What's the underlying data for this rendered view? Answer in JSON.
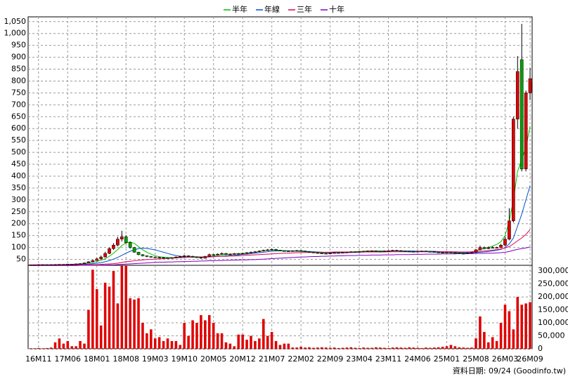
{
  "chart_data": {
    "type": "candlestick",
    "legend": "top",
    "grid": true,
    "categories": [
      null,
      null,
      "16M11",
      null,
      null,
      null,
      null,
      null,
      null,
      "17M06",
      null,
      null,
      null,
      null,
      null,
      null,
      "18M01",
      null,
      null,
      null,
      null,
      null,
      null,
      "18M08",
      null,
      null,
      null,
      null,
      null,
      null,
      "19M03",
      null,
      null,
      null,
      null,
      null,
      null,
      "19M10",
      null,
      null,
      null,
      null,
      null,
      null,
      "20M05",
      null,
      null,
      null,
      null,
      null,
      null,
      "20M12",
      null,
      null,
      null,
      null,
      null,
      null,
      "21M07",
      null,
      null,
      null,
      null,
      null,
      null,
      "22M02",
      null,
      null,
      null,
      null,
      null,
      null,
      "22M09",
      null,
      null,
      null,
      null,
      null,
      null,
      "23M04",
      null,
      null,
      null,
      null,
      null,
      null,
      "23M11",
      null,
      null,
      null,
      null,
      null,
      null,
      "24M06",
      null,
      null,
      null,
      null,
      null,
      null,
      "25M01",
      null,
      null,
      null,
      null,
      null,
      null,
      "25M08",
      null,
      null,
      null,
      null,
      null,
      null,
      "26M03",
      null,
      null,
      null,
      null,
      null,
      "26M09"
    ],
    "open": [
      26,
      27,
      27,
      28,
      28,
      27,
      28,
      28,
      29,
      29,
      30,
      30,
      31,
      32,
      35,
      40,
      45,
      52,
      60,
      75,
      95,
      110,
      135,
      145,
      120,
      100,
      80,
      70,
      65,
      62,
      60,
      58,
      58,
      56,
      55,
      57,
      60,
      62,
      65,
      63,
      60,
      58,
      55,
      62,
      70,
      68,
      72,
      75,
      70,
      72,
      74,
      73,
      75,
      78,
      80,
      82,
      85,
      88,
      90,
      92,
      88,
      86,
      85,
      84,
      86,
      87,
      85,
      83,
      80,
      78,
      76,
      75,
      74,
      76,
      78,
      77,
      79,
      80,
      82,
      81,
      83,
      84,
      85,
      86,
      84,
      83,
      85,
      86,
      88,
      87,
      85,
      84,
      83,
      82,
      84,
      85,
      83,
      82,
      80,
      79,
      78,
      80,
      78,
      76,
      75,
      74,
      76,
      80,
      90,
      100,
      95,
      100,
      98,
      100,
      110,
      135,
      212,
      640,
      890,
      430,
      750
    ],
    "high": [
      28,
      28,
      29,
      29,
      29,
      29,
      30,
      30,
      30,
      31,
      31,
      32,
      34,
      37,
      42,
      48,
      56,
      66,
      82,
      100,
      118,
      145,
      170,
      150,
      125,
      102,
      82,
      72,
      67,
      64,
      62,
      61,
      60,
      58,
      59,
      62,
      65,
      68,
      67,
      65,
      62,
      60,
      65,
      74,
      72,
      75,
      79,
      77,
      75,
      77,
      77,
      78,
      81,
      83,
      85,
      88,
      91,
      94,
      96,
      94,
      90,
      88,
      87,
      88,
      90,
      89,
      87,
      85,
      82,
      80,
      78,
      77,
      78,
      80,
      80,
      81,
      82,
      84,
      84,
      85,
      86,
      87,
      88,
      88,
      86,
      87,
      88,
      90,
      90,
      89,
      87,
      86,
      85,
      86,
      87,
      87,
      85,
      84,
      82,
      81,
      82,
      82,
      80,
      78,
      77,
      78,
      82,
      93,
      108,
      104,
      104,
      105,
      103,
      115,
      145,
      265,
      650,
      905,
      1040,
      760,
      855
    ],
    "low": [
      25,
      26,
      26,
      27,
      26,
      26,
      27,
      27,
      28,
      28,
      29,
      29,
      30,
      31,
      34,
      39,
      44,
      50,
      58,
      72,
      90,
      105,
      125,
      115,
      95,
      78,
      67,
      62,
      59,
      57,
      56,
      55,
      53,
      53,
      54,
      55,
      58,
      60,
      61,
      58,
      56,
      52,
      53,
      60,
      65,
      66,
      70,
      68,
      68,
      70,
      71,
      71,
      73,
      76,
      78,
      80,
      83,
      85,
      87,
      86,
      84,
      83,
      82,
      82,
      83,
      83,
      81,
      78,
      76,
      74,
      73,
      72,
      72,
      74,
      75,
      75,
      77,
      78,
      79,
      79,
      81,
      82,
      83,
      82,
      81,
      81,
      83,
      84,
      84,
      83,
      82,
      81,
      80,
      80,
      82,
      81,
      80,
      78,
      77,
      76,
      76,
      75,
      74,
      73,
      72,
      72,
      74,
      78,
      88,
      92,
      93,
      96,
      96,
      98,
      105,
      130,
      205,
      600,
      420,
      420,
      720
    ],
    "close": [
      27,
      27,
      28,
      28,
      27,
      28,
      28,
      29,
      29,
      30,
      30,
      31,
      32,
      35,
      40,
      45,
      52,
      60,
      75,
      95,
      110,
      135,
      145,
      120,
      100,
      80,
      70,
      65,
      62,
      60,
      58,
      58,
      56,
      55,
      57,
      60,
      62,
      65,
      63,
      60,
      58,
      55,
      62,
      70,
      68,
      72,
      75,
      70,
      72,
      74,
      73,
      75,
      78,
      80,
      82,
      85,
      88,
      90,
      92,
      88,
      86,
      85,
      84,
      86,
      87,
      85,
      83,
      80,
      78,
      76,
      75,
      74,
      76,
      78,
      77,
      79,
      80,
      82,
      81,
      83,
      84,
      85,
      86,
      84,
      83,
      85,
      86,
      88,
      87,
      85,
      84,
      83,
      82,
      84,
      85,
      83,
      82,
      80,
      79,
      78,
      80,
      78,
      76,
      75,
      74,
      76,
      80,
      90,
      100,
      95,
      100,
      98,
      100,
      110,
      135,
      212,
      640,
      840,
      430,
      750,
      810
    ],
    "up_color": "#e00000",
    "down_color": "#00a000",
    "ylim": [
      25,
      1070
    ],
    "yticks": [
      50,
      100,
      150,
      200,
      250,
      300,
      350,
      400,
      450,
      500,
      550,
      600,
      650,
      700,
      750,
      800,
      850,
      900,
      950,
      {
        "value": 1000,
        "label": "1,000"
      },
      {
        "value": 1050,
        "label": "1,050"
      }
    ],
    "series": [
      {
        "name": "半年",
        "color": "#00c000",
        "values": [
          27,
          27,
          27,
          27,
          27,
          27,
          28,
          28,
          28,
          29,
          29,
          30,
          31,
          32,
          34,
          37,
          41,
          46,
          53,
          63,
          76,
          91,
          108,
          120,
          123,
          117,
          104,
          90,
          80,
          72,
          65,
          61,
          59,
          58,
          57,
          58,
          59,
          60,
          61,
          61,
          61,
          60,
          60,
          62,
          64,
          67,
          70,
          71,
          72,
          73,
          74,
          75,
          76,
          78,
          80,
          83,
          86,
          88,
          89,
          89,
          88,
          87,
          86,
          85,
          84,
          83,
          82,
          80,
          79,
          78,
          77,
          76,
          76,
          77,
          78,
          79,
          80,
          81,
          82,
          83,
          84,
          85,
          85,
          85,
          85,
          85,
          85,
          86,
          86,
          85,
          84,
          84,
          84,
          84,
          84,
          83,
          82,
          81,
          80,
          79,
          79,
          78,
          77,
          76,
          75,
          76,
          80,
          86,
          92,
          96,
          100,
          106,
          113,
          124,
          150,
          210,
          300,
          420,
          470,
          520,
          610
        ]
      },
      {
        "name": "年線",
        "color": "#0050d0",
        "values": [
          27,
          27,
          27,
          27,
          27,
          27,
          27,
          27,
          27,
          28,
          28,
          28,
          29,
          29,
          30,
          32,
          34,
          36,
          40,
          45,
          51,
          58,
          67,
          76,
          84,
          90,
          95,
          97,
          96,
          93,
          90,
          85,
          80,
          75,
          70,
          66,
          63,
          61,
          60,
          59,
          59,
          59,
          60,
          60,
          61,
          62,
          64,
          65,
          66,
          67,
          69,
          71,
          72,
          74,
          76,
          78,
          80,
          82,
          84,
          85,
          86,
          86,
          86,
          86,
          85,
          85,
          84,
          83,
          82,
          81,
          80,
          79,
          79,
          78,
          78,
          78,
          78,
          79,
          79,
          80,
          81,
          82,
          82,
          83,
          83,
          84,
          84,
          85,
          85,
          85,
          85,
          85,
          85,
          84,
          84,
          84,
          84,
          84,
          83,
          82,
          82,
          81,
          80,
          79,
          78,
          78,
          78,
          79,
          80,
          81,
          83,
          85,
          88,
          92,
          100,
          115,
          140,
          190,
          240,
          300,
          360
        ]
      },
      {
        "name": "三年",
        "color": "#e0005a",
        "values": [
          26,
          26,
          26,
          26,
          26,
          26,
          26,
          26,
          26,
          26,
          26,
          27,
          27,
          27,
          27,
          28,
          28,
          29,
          30,
          31,
          32,
          34,
          37,
          40,
          42,
          44,
          46,
          48,
          49,
          50,
          51,
          52,
          53,
          54,
          55,
          56,
          57,
          58,
          59,
          59,
          60,
          60,
          61,
          61,
          62,
          62,
          63,
          63,
          64,
          64,
          65,
          66,
          67,
          68,
          69,
          70,
          71,
          72,
          73,
          74,
          75,
          76,
          76,
          77,
          78,
          78,
          79,
          79,
          80,
          80,
          80,
          80,
          80,
          81,
          81,
          81,
          81,
          81,
          81,
          81,
          81,
          81,
          81,
          81,
          81,
          81,
          82,
          82,
          82,
          82,
          82,
          82,
          82,
          82,
          82,
          82,
          82,
          82,
          82,
          82,
          82,
          82,
          82,
          81,
          81,
          81,
          82,
          83,
          84,
          85,
          87,
          89,
          91,
          94,
          98,
          104,
          115,
          128,
          140,
          155,
          175
        ]
      },
      {
        "name": "十年",
        "color": "#8000c0",
        "values": [
          24,
          24,
          24,
          24,
          24,
          24,
          24,
          24,
          24,
          24,
          24,
          24,
          25,
          25,
          25,
          25,
          25,
          26,
          26,
          27,
          27,
          28,
          29,
          30,
          31,
          32,
          33,
          34,
          35,
          36,
          37,
          38,
          38,
          39,
          39,
          40,
          40,
          41,
          41,
          42,
          42,
          43,
          43,
          44,
          44,
          45,
          45,
          46,
          46,
          47,
          47,
          48,
          48,
          49,
          49,
          50,
          51,
          52,
          53,
          54,
          55,
          56,
          57,
          58,
          59,
          60,
          60,
          61,
          62,
          62,
          63,
          63,
          64,
          64,
          65,
          65,
          66,
          66,
          66,
          67,
          67,
          67,
          68,
          68,
          68,
          69,
          69,
          69,
          70,
          70,
          70,
          70,
          71,
          71,
          71,
          72,
          72,
          72,
          72,
          73,
          73,
          73,
          73,
          74,
          74,
          74,
          74,
          75,
          75,
          75,
          76,
          76,
          77,
          78,
          80,
          83,
          88,
          92,
          95,
          98,
          102
        ]
      }
    ],
    "volume": {
      "type": "bar",
      "color": "#e00000",
      "values": [
        2000,
        2000,
        3000,
        2000,
        3000,
        5000,
        25000,
        40000,
        20000,
        30000,
        10000,
        10000,
        30000,
        20000,
        150000,
        305000,
        230000,
        90000,
        255000,
        240000,
        300000,
        175000,
        320000,
        320000,
        195000,
        190000,
        195000,
        100000,
        60000,
        75000,
        40000,
        45000,
        30000,
        40000,
        30000,
        30000,
        15000,
        100000,
        50000,
        110000,
        100000,
        130000,
        110000,
        130000,
        100000,
        60000,
        60000,
        25000,
        20000,
        10000,
        55000,
        55000,
        35000,
        50000,
        30000,
        40000,
        115000,
        50000,
        65000,
        30000,
        15000,
        20000,
        20000,
        5000,
        5000,
        8000,
        5000,
        6000,
        4000,
        5000,
        6000,
        5000,
        4000,
        5000,
        3000,
        4000,
        5000,
        6000,
        4000,
        3000,
        5000,
        4000,
        4000,
        6000,
        5000,
        4000,
        3000,
        5000,
        6000,
        5000,
        4000,
        6000,
        5000,
        4000,
        3000,
        5000,
        4000,
        5000,
        6000,
        8000,
        10000,
        15000,
        10000,
        6000,
        5000,
        4000,
        5000,
        40000,
        125000,
        65000,
        25000,
        45000,
        30000,
        100000,
        170000,
        145000,
        75000,
        200000,
        170000,
        175000,
        180000
      ],
      "ylim": [
        0,
        322000
      ],
      "yticks": [
        0,
        {
          "value": 50000,
          "label": "50,000"
        },
        {
          "value": 100000,
          "label": "100,000"
        },
        {
          "value": 150000,
          "label": "150,000"
        },
        {
          "value": 200000,
          "label": "200,000"
        },
        {
          "value": 250000,
          "label": "250,000"
        },
        {
          "value": 300000,
          "label": "300,000"
        }
      ]
    },
    "note": "資料日期: 09/24 (Goodinfo.tw)"
  }
}
